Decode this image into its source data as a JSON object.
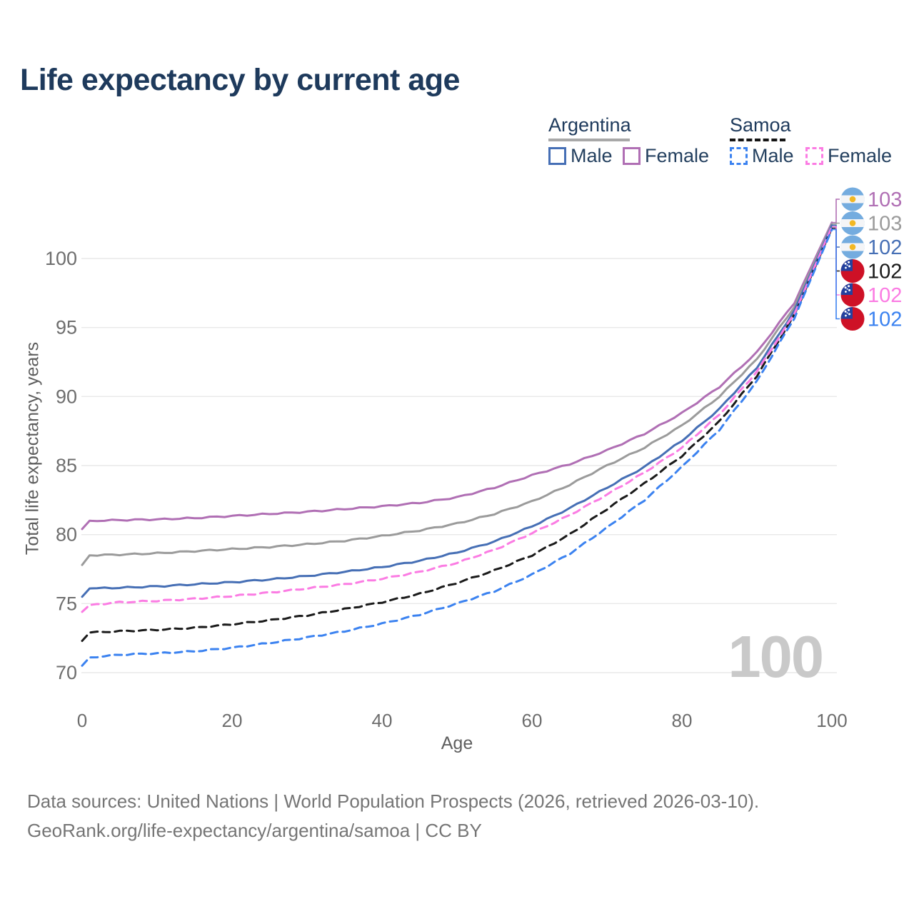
{
  "title": "Life expectancy by current age",
  "watermark_age": "100",
  "axes": {
    "x_title": "Age",
    "y_title": "Total life expectancy, years"
  },
  "footer": {
    "line1": "Data sources: United Nations | World Population Prospects (2026, retrieved 2026-03-10).",
    "line2": "GeoRank.org/life-expectancy/argentina/samoa | CC BY"
  },
  "legend": {
    "groups": [
      {
        "name": "Argentina",
        "rule_color": "#a8a8a8",
        "rule_style": "solid",
        "items": [
          {
            "label": "Male",
            "series": "argentina_male"
          },
          {
            "label": "Female",
            "series": "argentina_female"
          }
        ]
      },
      {
        "name": "Samoa",
        "rule_color": "#141414",
        "rule_style": "dashed",
        "items": [
          {
            "label": "Male",
            "series": "samoa_male"
          },
          {
            "label": "Female",
            "series": "samoa_female"
          }
        ]
      }
    ]
  },
  "chart_data": {
    "type": "line",
    "title": "Life expectancy by current age",
    "xlabel": "Age",
    "ylabel": "Total life expectancy, years",
    "x_ticks": [
      0,
      20,
      40,
      60,
      80,
      100
    ],
    "y_ticks": [
      70,
      75,
      80,
      85,
      90,
      95,
      100
    ],
    "xlim": [
      0,
      100
    ],
    "ylim": [
      69,
      103.5
    ],
    "grid": true,
    "legend_position": "top-right",
    "grid_color": "#e9e9e9",
    "tick_color": "#6e6e6e",
    "ages": [
      0,
      1,
      5,
      10,
      15,
      20,
      25,
      30,
      35,
      40,
      45,
      50,
      55,
      60,
      65,
      70,
      75,
      80,
      85,
      90,
      95,
      100
    ],
    "series": [
      {
        "id": "argentina_female",
        "name": "Argentina Female",
        "country": "Argentina",
        "sex": "Female",
        "flag": "argentina",
        "color": "#b06fb4",
        "dashed": false,
        "end_label": "103",
        "values": [
          80.4,
          81.0,
          81.05,
          81.1,
          81.2,
          81.35,
          81.5,
          81.65,
          81.85,
          82.05,
          82.3,
          82.7,
          83.4,
          84.3,
          85.1,
          86.1,
          87.3,
          88.8,
          90.7,
          93.2,
          96.8,
          102.6
        ]
      },
      {
        "id": "argentina_both",
        "name": "Argentina (both sexes)",
        "country": "Argentina",
        "sex": "Both",
        "flag": "argentina",
        "color": "#9b9b9b",
        "dashed": false,
        "end_label": "103",
        "values": [
          77.8,
          78.5,
          78.55,
          78.65,
          78.8,
          78.95,
          79.1,
          79.3,
          79.55,
          79.9,
          80.3,
          80.8,
          81.5,
          82.4,
          83.6,
          85.0,
          86.3,
          87.9,
          90.0,
          92.7,
          96.5,
          102.5
        ]
      },
      {
        "id": "argentina_male",
        "name": "Argentina Male",
        "country": "Argentina",
        "sex": "Male",
        "flag": "argentina",
        "color": "#466fb5",
        "dashed": false,
        "end_label": "102",
        "values": [
          75.5,
          76.1,
          76.15,
          76.25,
          76.4,
          76.55,
          76.75,
          77.0,
          77.3,
          77.65,
          78.1,
          78.7,
          79.5,
          80.6,
          81.9,
          83.4,
          84.9,
          86.8,
          89.1,
          92.1,
          96.2,
          102.4
        ]
      },
      {
        "id": "samoa_both",
        "name": "Samoa (both sexes)",
        "country": "Samoa",
        "sex": "Both",
        "flag": "samoa",
        "color": "#1a1a1a",
        "dashed": true,
        "end_label": "102",
        "values": [
          72.3,
          72.9,
          73.0,
          73.1,
          73.25,
          73.5,
          73.8,
          74.15,
          74.6,
          75.1,
          75.7,
          76.5,
          77.4,
          78.5,
          80.0,
          81.85,
          83.7,
          85.7,
          88.2,
          91.5,
          95.9,
          102.2
        ]
      },
      {
        "id": "samoa_female",
        "name": "Samoa Female",
        "country": "Samoa",
        "sex": "Female",
        "flag": "samoa",
        "color": "#fb7ce3",
        "dashed": true,
        "end_label": "102",
        "values": [
          74.4,
          74.9,
          75.1,
          75.2,
          75.35,
          75.55,
          75.8,
          76.1,
          76.4,
          76.8,
          77.3,
          77.95,
          78.9,
          80.1,
          81.4,
          82.9,
          84.5,
          86.3,
          88.7,
          91.8,
          96.0,
          102.3
        ]
      },
      {
        "id": "samoa_male",
        "name": "Samoa Male",
        "country": "Samoa",
        "sex": "Male",
        "flag": "samoa",
        "color": "#3b82f0",
        "dashed": true,
        "end_label": "102",
        "values": [
          70.5,
          71.1,
          71.3,
          71.4,
          71.55,
          71.8,
          72.15,
          72.55,
          73.0,
          73.55,
          74.2,
          75.0,
          75.9,
          77.1,
          78.6,
          80.5,
          82.5,
          84.9,
          87.6,
          91.1,
          95.7,
          102.1
        ]
      }
    ],
    "flag_colors": {
      "argentina": {
        "band": "#74acdf",
        "middle": "#f4f5f7",
        "sun": "#f2b824"
      },
      "samoa": {
        "field": "#ce1126",
        "canton": "#24419e",
        "stars": "#ffffff"
      }
    }
  }
}
